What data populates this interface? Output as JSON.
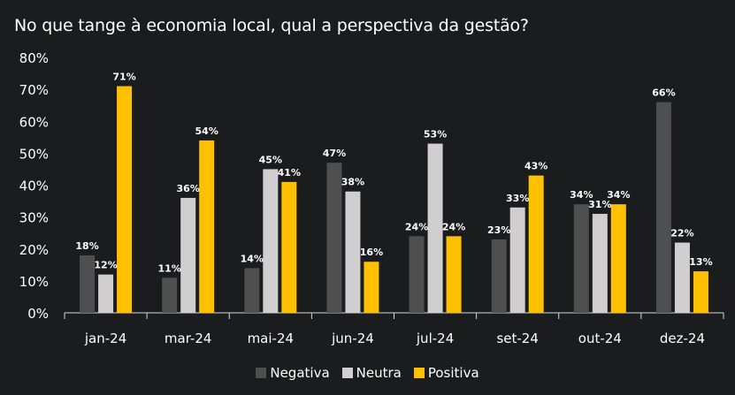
{
  "chart_data": {
    "type": "bar",
    "title": "No que tange à economia local, qual a perspectiva da gestão?",
    "xlabel": "",
    "ylabel": "",
    "ylim": [
      0,
      80
    ],
    "yticks": [
      "0%",
      "10%",
      "20%",
      "30%",
      "40%",
      "50%",
      "60%",
      "70%",
      "80%"
    ],
    "categories": [
      "jan-24",
      "mar-24",
      "mai-24",
      "jun-24",
      "jul-24",
      "set-24",
      "out-24",
      "dez-24"
    ],
    "series": [
      {
        "name": "Negativa",
        "color": "#4f4f4f",
        "values": [
          18,
          11,
          14,
          47,
          24,
          23,
          34,
          66
        ],
        "labels": [
          "18%",
          "11%",
          "14%",
          "47%",
          "24%",
          "23%",
          "34%",
          "66%"
        ]
      },
      {
        "name": "Neutra",
        "color": "#d0cecf",
        "values": [
          12,
          36,
          45,
          38,
          53,
          33,
          31,
          22
        ],
        "labels": [
          "12%",
          "36%",
          "45%",
          "38%",
          "53%",
          "33%",
          "31%",
          "22%"
        ]
      },
      {
        "name": "Positiva",
        "color": "#ffc000",
        "values": [
          71,
          54,
          41,
          16,
          24,
          43,
          34,
          13
        ],
        "labels": [
          "71%",
          "54%",
          "41%",
          "16%",
          "24%",
          "43%",
          "34%",
          "13%"
        ]
      }
    ],
    "legend_position": "bottom",
    "grid": false
  }
}
